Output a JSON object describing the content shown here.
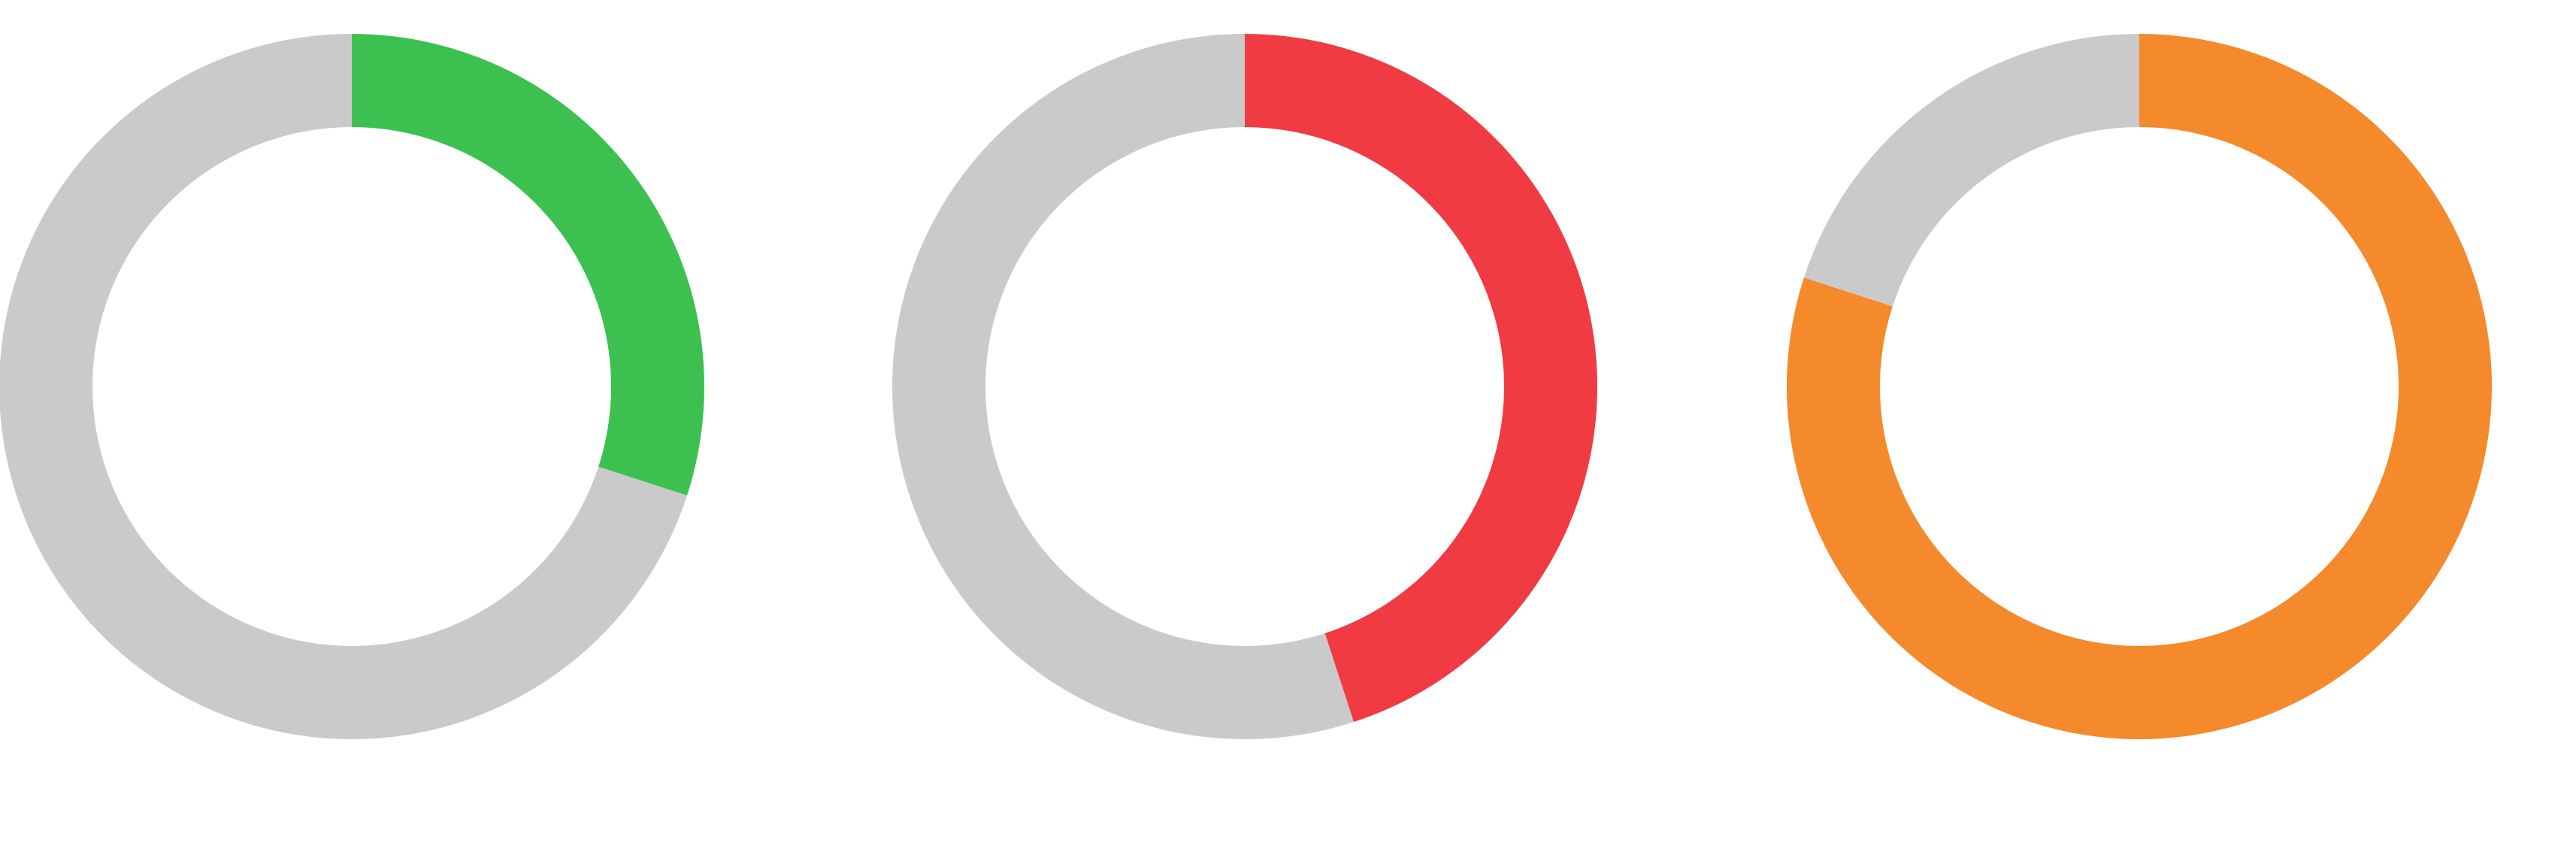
{
  "chart_data": [
    {
      "type": "pie",
      "values": [
        0.3,
        0.7
      ],
      "colors": [
        "#3cc151",
        "#cacaca"
      ]
    },
    {
      "type": "pie",
      "values": [
        0.45,
        0.55
      ],
      "colors": [
        "#ef3b41",
        "#cacaca"
      ]
    },
    {
      "type": "pie",
      "values": [
        0.8,
        0.2
      ],
      "colors": [
        "#f48a2c",
        "#cacaca"
      ]
    }
  ]
}
